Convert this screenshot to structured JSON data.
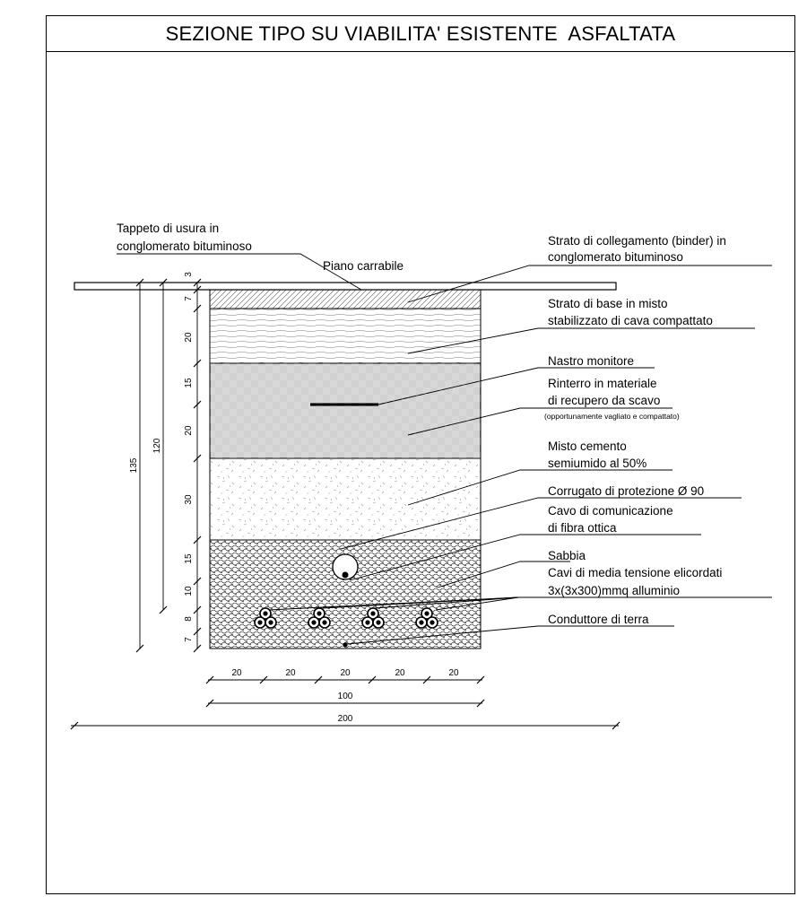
{
  "title": "SEZIONE TIPO SU VIABILITA' ESISTENTE  ASFALTATA",
  "labels": {
    "tappeto_1": "Tappeto di usura in",
    "tappeto_2": "conglomerato bituminoso",
    "piano": "Piano carrabile",
    "binder_1": "Strato di collegamento (binder) in",
    "binder_2": "conglomerato bituminoso",
    "base_1": "Strato di base in misto",
    "base_2": "stabilizzato di cava compattato",
    "nastro": "Nastro monitore",
    "rinterro_1": "Rinterro in materiale",
    "rinterro_2": "di recupero da scavo",
    "rinterro_3": "(opportunamente vagliato e compattato)",
    "misto_1": "Misto cemento",
    "misto_2": "semiumido al 50%",
    "corrugato": "Corrugato di protezione Ø 90",
    "cavo_1": "Cavo di comunicazione",
    "cavo_2": "di fibra ottica",
    "sabbia": "Sabbia",
    "cavi_1": "Cavi di  media  tensione elicordati",
    "cavi_2": "3x(3x300)mmq alluminio",
    "terra": "Conduttore di terra"
  },
  "dimensions": {
    "layers": [
      "3",
      "7",
      "20",
      "15",
      "20",
      "30",
      "15",
      "10",
      "8",
      "7"
    ],
    "total_120": "120",
    "total_135": "135",
    "bottom": [
      "20",
      "20",
      "20",
      "20",
      "20"
    ],
    "width_100": "100",
    "width_200": "200"
  },
  "colors": {
    "ink": "#000000",
    "background": "#ffffff",
    "hatch": "#555555"
  }
}
